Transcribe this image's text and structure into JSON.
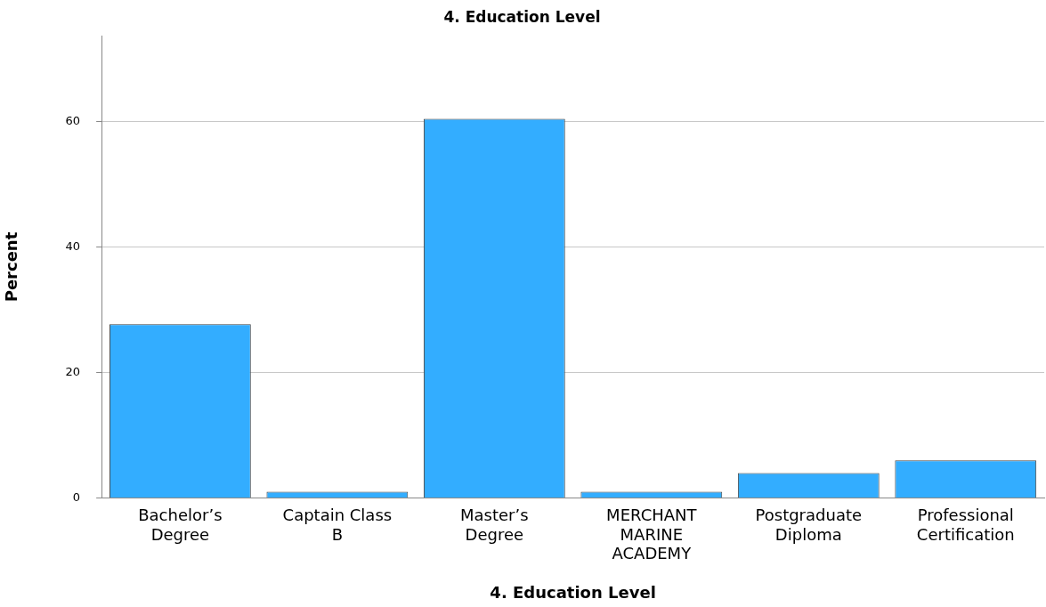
{
  "chart_data": {
    "type": "bar",
    "title": "4. Education Level",
    "xlabel": "4. Education Level",
    "ylabel": "Percent",
    "categories": [
      "Bachelor’s Degree",
      "Captain Class B",
      "Master’s Degree",
      "MERCHANT MARINE ACADEMY",
      "Postgraduate Diploma",
      "Professional Certification"
    ],
    "values": [
      27.7,
      1.0,
      60.4,
      1.0,
      4.0,
      6.0
    ],
    "color": "#33adff",
    "ylim": [
      0,
      73.6
    ],
    "yticks": [
      0,
      20,
      40,
      60
    ],
    "grid": "y",
    "legend": false
  }
}
